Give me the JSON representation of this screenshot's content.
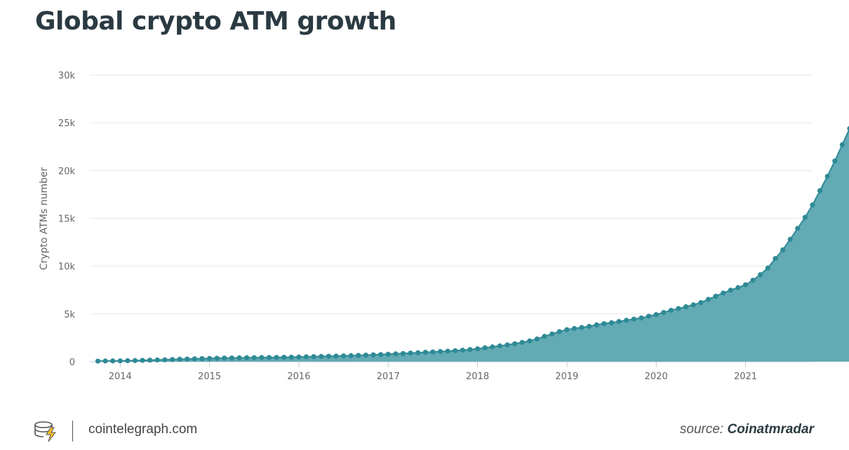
{
  "header": {
    "title": "Global crypto ATM growth"
  },
  "footer": {
    "site": "cointelegraph.com",
    "source_prefix": "source:",
    "source_name": "Coinatmradar"
  },
  "colors": {
    "area": "#62aab4",
    "line": "#2e8a96",
    "marker": "#2e8a96",
    "grid": "#e6e6e6",
    "axis": "#c0c9d6"
  },
  "chart_data": {
    "type": "area",
    "title": "Global crypto ATM growth",
    "xlabel": "",
    "ylabel": "Crypto ATMs number",
    "ylim": [
      0,
      30000
    ],
    "yticks": [
      0,
      5000,
      10000,
      15000,
      20000,
      25000,
      30000
    ],
    "ytick_labels": [
      "0",
      "5k",
      "10k",
      "15k",
      "20k",
      "25k",
      "30k"
    ],
    "xlim": [
      2013.66,
      2021.75
    ],
    "xticks": [
      2014,
      2015,
      2016,
      2017,
      2018,
      2019,
      2020,
      2021
    ],
    "xtick_labels": [
      "2014",
      "2015",
      "2016",
      "2017",
      "2018",
      "2019",
      "2020",
      "2021"
    ],
    "grid": true,
    "legend": false,
    "x_start": "2013-10",
    "x_step": "1 month",
    "values": [
      60,
      70,
      80,
      90,
      100,
      120,
      140,
      160,
      180,
      200,
      230,
      260,
      280,
      300,
      320,
      340,
      360,
      380,
      390,
      400,
      410,
      420,
      430,
      440,
      450,
      460,
      470,
      490,
      510,
      530,
      550,
      570,
      590,
      610,
      630,
      660,
      690,
      720,
      750,
      780,
      820,
      860,
      900,
      940,
      980,
      1020,
      1060,
      1100,
      1150,
      1200,
      1270,
      1350,
      1450,
      1550,
      1650,
      1760,
      1880,
      2020,
      2180,
      2380,
      2650,
      2900,
      3150,
      3350,
      3480,
      3580,
      3700,
      3850,
      3980,
      4080,
      4200,
      4330,
      4450,
      4580,
      4750,
      4930,
      5150,
      5380,
      5560,
      5750,
      5950,
      6180,
      6520,
      6850,
      7180,
      7480,
      7750,
      8050,
      8520,
      9100,
      9800,
      10800,
      11700,
      12800,
      13950,
      15100,
      16400,
      17900,
      19400,
      21000,
      22700,
      24400
    ]
  }
}
